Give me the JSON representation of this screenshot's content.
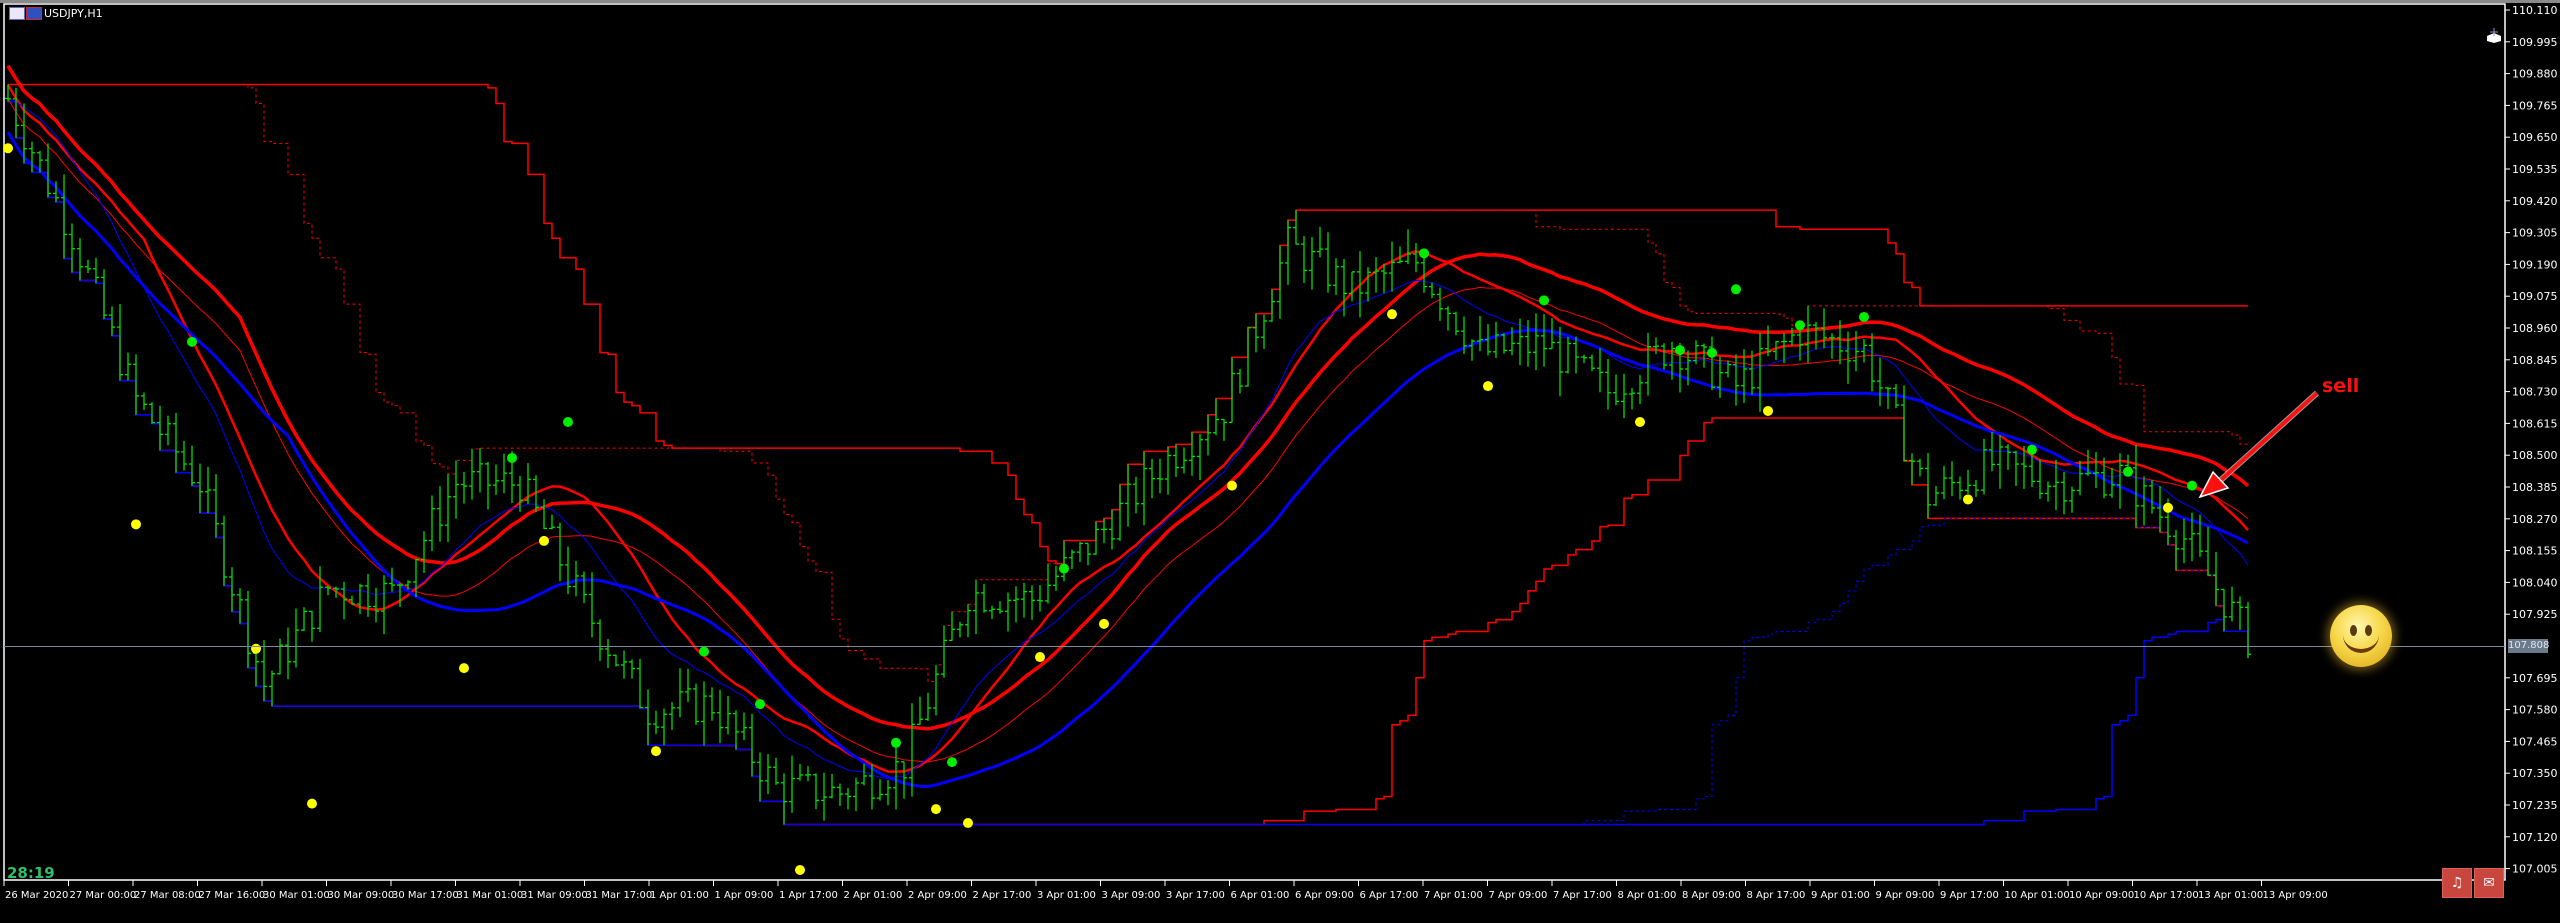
{
  "window": {
    "symbol_title": "USDJPY,H1"
  },
  "timer": "28:19",
  "annotation": {
    "text": "sell",
    "icon": "smiley-face-icon"
  },
  "buttons": [
    {
      "name": "alert-bell-button",
      "icon": "bell-icon"
    },
    {
      "name": "message-button",
      "icon": "message-icon"
    }
  ],
  "colors": {
    "background": "#000000",
    "bars": "#00dd00",
    "upper_lines": "#ff0000",
    "lower_lines": "#0000ff",
    "buy_dot": "#ffff00",
    "signal_dot": "#00ee00",
    "price_line": "#7a8a9a",
    "price_tag": "#6b7b8b"
  },
  "chart_data": {
    "type": "ohlc-bar",
    "title": "USDJPY,H1",
    "price_axis_labels": [
      "110.110",
      "109.995",
      "109.880",
      "109.765",
      "109.650",
      "109.535",
      "109.420",
      "109.305",
      "109.190",
      "109.075",
      "108.960",
      "108.845",
      "108.730",
      "108.615",
      "108.500",
      "108.385",
      "108.270",
      "108.155",
      "108.040",
      "107.925",
      "107.808",
      "107.695",
      "107.580",
      "107.465",
      "107.350",
      "107.235",
      "107.120",
      "107.005"
    ],
    "ylim": [
      107.005,
      110.11
    ],
    "current_price": "107.808",
    "time_axis_labels": [
      "26 Mar 2020",
      "27 Mar 00:00",
      "27 Mar 08:00",
      "27 Mar 16:00",
      "30 Mar 01:00",
      "30 Mar 09:00",
      "30 Mar 17:00",
      "31 Mar 01:00",
      "31 Mar 09:00",
      "31 Mar 17:00",
      "1 Apr 01:00",
      "1 Apr 09:00",
      "1 Apr 17:00",
      "2 Apr 01:00",
      "2 Apr 09:00",
      "2 Apr 17:00",
      "3 Apr 01:00",
      "3 Apr 09:00",
      "3 Apr 17:00",
      "6 Apr 01:00",
      "6 Apr 09:00",
      "6 Apr 17:00",
      "7 Apr 01:00",
      "7 Apr 09:00",
      "7 Apr 17:00",
      "8 Apr 01:00",
      "8 Apr 09:00",
      "8 Apr 17:00",
      "9 Apr 01:00",
      "9 Apr 09:00",
      "9 Apr 17:00",
      "10 Apr 01:00",
      "10 Apr 09:00",
      "10 Apr 17:00",
      "13 Apr 01:00",
      "13 Apr 09:00"
    ],
    "closes_at_time_labels": [
      109.79,
      109.3,
      108.7,
      108.4,
      107.67,
      108.02,
      108.0,
      108.4,
      108.4,
      107.95,
      107.58,
      107.6,
      107.3,
      107.28,
      107.38,
      108.0,
      107.98,
      108.2,
      108.46,
      108.67,
      109.26,
      109.1,
      109.2,
      108.87,
      108.9,
      108.73,
      108.9,
      108.75,
      108.95,
      108.88,
      108.35,
      108.47,
      108.4,
      108.43,
      108.2,
      107.84
    ],
    "yellow_dots": [
      [
        0,
        109.61
      ],
      [
        16,
        108.25
      ],
      [
        31,
        107.8
      ],
      [
        38,
        107.24
      ],
      [
        57,
        107.73
      ],
      [
        67,
        108.19
      ],
      [
        81,
        107.43
      ],
      [
        99,
        107.0
      ],
      [
        116,
        107.22
      ],
      [
        120,
        107.17
      ],
      [
        129,
        107.77
      ],
      [
        137,
        107.89
      ],
      [
        153,
        108.39
      ],
      [
        173,
        109.01
      ],
      [
        185,
        108.75
      ],
      [
        204,
        108.62
      ],
      [
        220,
        108.66
      ],
      [
        245,
        108.34
      ],
      [
        270,
        108.31
      ]
    ],
    "green_dots": [
      [
        23,
        108.91
      ],
      [
        63,
        108.49
      ],
      [
        70,
        108.62
      ],
      [
        87,
        107.79
      ],
      [
        94,
        107.6
      ],
      [
        111,
        107.46
      ],
      [
        118,
        107.39
      ],
      [
        132,
        108.09
      ],
      [
        177,
        109.23
      ],
      [
        192,
        109.06
      ],
      [
        209,
        108.88
      ],
      [
        213,
        108.87
      ],
      [
        216,
        109.1
      ],
      [
        224,
        108.97
      ],
      [
        232,
        109.0
      ],
      [
        253,
        108.52
      ],
      [
        265,
        108.44
      ],
      [
        273,
        108.39
      ]
    ],
    "grid": false
  }
}
